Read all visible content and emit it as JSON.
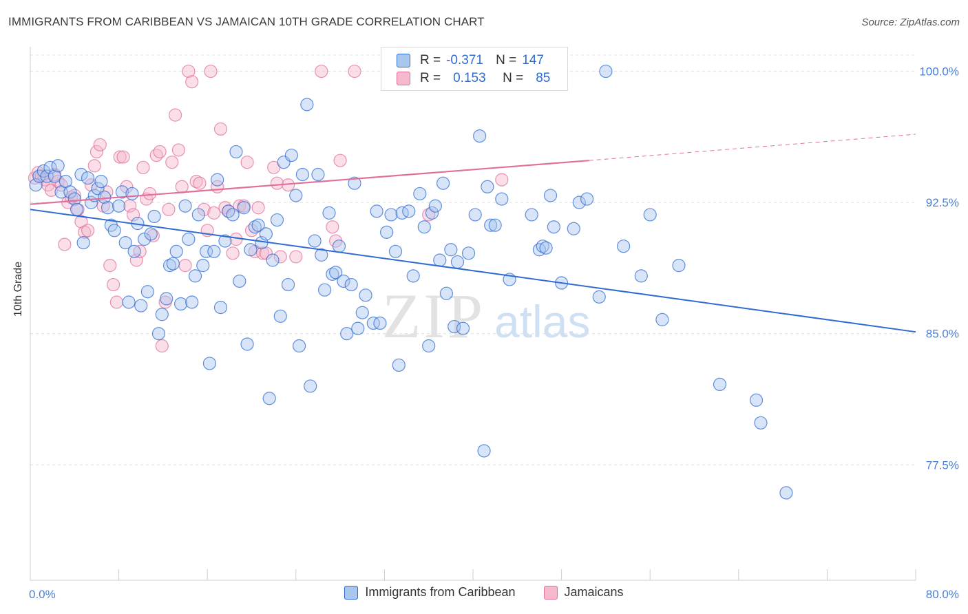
{
  "title": "IMMIGRANTS FROM CARIBBEAN VS JAMAICAN 10TH GRADE CORRELATION CHART",
  "source": "Source: ZipAtlas.com",
  "watermark": {
    "zip": "ZIP",
    "atlas": "atlas"
  },
  "colors": {
    "blue": "#2f6bd0",
    "blue_fill": "#a9c6ef",
    "pink": "#e06f9c",
    "pink_fill": "#f4b9cd",
    "axis_text": "#4a7fd4"
  },
  "stats": [
    {
      "label_r": "R =",
      "r": "-0.371",
      "label_n": "N =",
      "n": "147",
      "color": "blue"
    },
    {
      "label_r": "R =",
      "r": "0.153",
      "label_n": "N =",
      "n": "85",
      "color": "pink"
    }
  ],
  "legend": [
    {
      "name": "Immigrants from Caribbean",
      "color": "blue"
    },
    {
      "name": "Jamaicans",
      "color": "pink"
    }
  ],
  "chart_data": {
    "type": "scatter",
    "title": "IMMIGRANTS FROM CARIBBEAN VS JAMAICAN 10TH GRADE CORRELATION CHART",
    "xlabel": "",
    "ylabel": "10th Grade",
    "xlim": [
      0,
      80
    ],
    "ylim": [
      70.9,
      101.4
    ],
    "x_tick_labels": [
      "0.0%",
      "80.0%"
    ],
    "y_ticks": [
      77.5,
      85.0,
      92.5,
      100.0
    ],
    "y_tick_labels": [
      "77.5%",
      "85.0%",
      "92.5%",
      "100.0%"
    ],
    "grid": "horizontal dashed",
    "legend_position": "bottom",
    "series": [
      {
        "name": "Immigrants from Caribbean",
        "color": "blue",
        "trend": {
          "x": [
            0,
            80
          ],
          "y": [
            92.1,
            85.1
          ]
        },
        "points": [
          [
            0.5,
            93.5
          ],
          [
            0.8,
            94.0
          ],
          [
            1.2,
            94.3
          ],
          [
            1.5,
            94.0
          ],
          [
            1.8,
            94.5
          ],
          [
            2.2,
            94.0
          ],
          [
            2.5,
            94.6
          ],
          [
            2.8,
            93.1
          ],
          [
            3.2,
            93.7
          ],
          [
            3.6,
            93.1
          ],
          [
            4.0,
            92.7
          ],
          [
            4.2,
            92.1
          ],
          [
            4.6,
            94.1
          ],
          [
            4.8,
            90.2
          ],
          [
            5.2,
            93.9
          ],
          [
            5.5,
            92.5
          ],
          [
            5.8,
            92.9
          ],
          [
            6.1,
            93.3
          ],
          [
            6.4,
            93.7
          ],
          [
            6.7,
            92.8
          ],
          [
            7.0,
            92.2
          ],
          [
            7.3,
            91.2
          ],
          [
            7.6,
            90.9
          ],
          [
            8.0,
            92.3
          ],
          [
            8.3,
            93.1
          ],
          [
            8.6,
            90.2
          ],
          [
            8.9,
            86.8
          ],
          [
            9.2,
            93.0
          ],
          [
            9.4,
            89.7
          ],
          [
            9.7,
            91.3
          ],
          [
            10.0,
            86.6
          ],
          [
            10.3,
            90.4
          ],
          [
            10.6,
            87.4
          ],
          [
            10.9,
            90.7
          ],
          [
            11.2,
            91.7
          ],
          [
            11.6,
            85.0
          ],
          [
            11.9,
            86.1
          ],
          [
            12.3,
            87.0
          ],
          [
            12.6,
            88.9
          ],
          [
            12.9,
            89.0
          ],
          [
            13.2,
            89.7
          ],
          [
            13.6,
            86.7
          ],
          [
            14.0,
            92.3
          ],
          [
            14.3,
            90.4
          ],
          [
            14.6,
            86.8
          ],
          [
            14.9,
            88.3
          ],
          [
            15.2,
            91.8
          ],
          [
            15.6,
            88.9
          ],
          [
            15.9,
            89.7
          ],
          [
            16.2,
            83.3
          ],
          [
            16.6,
            89.7
          ],
          [
            16.9,
            93.8
          ],
          [
            17.2,
            86.5
          ],
          [
            17.6,
            90.3
          ],
          [
            17.9,
            92.0
          ],
          [
            18.3,
            91.8
          ],
          [
            18.6,
            95.4
          ],
          [
            18.9,
            88.0
          ],
          [
            19.3,
            92.2
          ],
          [
            19.6,
            84.4
          ],
          [
            19.9,
            89.8
          ],
          [
            20.3,
            91.1
          ],
          [
            20.6,
            91.2
          ],
          [
            20.9,
            90.2
          ],
          [
            21.3,
            90.7
          ],
          [
            21.6,
            81.3
          ],
          [
            21.9,
            89.2
          ],
          [
            22.3,
            91.5
          ],
          [
            22.6,
            86.0
          ],
          [
            22.9,
            94.8
          ],
          [
            23.3,
            87.8
          ],
          [
            23.6,
            95.2
          ],
          [
            24.0,
            92.9
          ],
          [
            24.3,
            84.3
          ],
          [
            24.6,
            94.1
          ],
          [
            25.0,
            98.1
          ],
          [
            25.3,
            82.0
          ],
          [
            25.7,
            90.3
          ],
          [
            26.0,
            94.1
          ],
          [
            26.3,
            89.5
          ],
          [
            26.6,
            87.5
          ],
          [
            27.0,
            91.9
          ],
          [
            27.3,
            88.4
          ],
          [
            27.6,
            88.5
          ],
          [
            27.9,
            90.0
          ],
          [
            28.3,
            88.0
          ],
          [
            28.6,
            85.0
          ],
          [
            29.0,
            87.8
          ],
          [
            29.3,
            93.6
          ],
          [
            29.6,
            85.3
          ],
          [
            30.0,
            86.2
          ],
          [
            30.3,
            87.2
          ],
          [
            31.0,
            85.6
          ],
          [
            31.3,
            92.0
          ],
          [
            31.6,
            85.6
          ],
          [
            32.2,
            90.8
          ],
          [
            32.6,
            91.8
          ],
          [
            33.0,
            89.7
          ],
          [
            33.3,
            83.2
          ],
          [
            33.6,
            91.9
          ],
          [
            34.2,
            92.0
          ],
          [
            34.6,
            88.3
          ],
          [
            35.2,
            93.0
          ],
          [
            35.6,
            91.1
          ],
          [
            36.0,
            84.3
          ],
          [
            36.3,
            91.9
          ],
          [
            36.6,
            92.3
          ],
          [
            37.0,
            89.2
          ],
          [
            37.3,
            93.6
          ],
          [
            37.6,
            87.3
          ],
          [
            38.0,
            89.8
          ],
          [
            38.3,
            85.4
          ],
          [
            38.6,
            89.1
          ],
          [
            39.1,
            85.3
          ],
          [
            39.6,
            89.6
          ],
          [
            40.2,
            91.8
          ],
          [
            40.6,
            96.3
          ],
          [
            41.0,
            78.3
          ],
          [
            41.3,
            93.4
          ],
          [
            41.6,
            91.2
          ],
          [
            42.0,
            91.2
          ],
          [
            42.6,
            92.7
          ],
          [
            43.3,
            88.1
          ],
          [
            45.3,
            91.8
          ],
          [
            46.0,
            89.8
          ],
          [
            46.3,
            90.0
          ],
          [
            46.6,
            89.9
          ],
          [
            47.0,
            92.9
          ],
          [
            47.3,
            91.1
          ],
          [
            48.0,
            87.9
          ],
          [
            49.1,
            91.0
          ],
          [
            49.6,
            92.5
          ],
          [
            50.3,
            92.7
          ],
          [
            51.4,
            87.1
          ],
          [
            52.0,
            100.0
          ],
          [
            53.6,
            90.0
          ],
          [
            55.2,
            88.3
          ],
          [
            56.0,
            91.8
          ],
          [
            57.1,
            85.8
          ],
          [
            58.6,
            88.9
          ],
          [
            62.3,
            82.1
          ],
          [
            65.6,
            81.2
          ],
          [
            66.0,
            79.9
          ],
          [
            68.3,
            75.9
          ]
        ]
      },
      {
        "name": "Jamaicans",
        "color": "pink",
        "trend": {
          "x": [
            0,
            50.5,
            80
          ],
          "y": [
            92.4,
            94.9,
            96.4
          ],
          "dashed_from_x": 50.5
        },
        "points": [
          [
            0.4,
            93.9
          ],
          [
            0.7,
            94.2
          ],
          [
            1.0,
            94.0
          ],
          [
            1.3,
            93.8
          ],
          [
            1.6,
            93.5
          ],
          [
            1.9,
            93.2
          ],
          [
            2.2,
            94.1
          ],
          [
            2.5,
            93.7
          ],
          [
            2.8,
            93.5
          ],
          [
            3.1,
            90.1
          ],
          [
            3.4,
            92.5
          ],
          [
            3.7,
            92.8
          ],
          [
            4.0,
            92.9
          ],
          [
            4.3,
            92.1
          ],
          [
            4.6,
            91.4
          ],
          [
            4.9,
            90.8
          ],
          [
            5.2,
            90.9
          ],
          [
            5.5,
            93.5
          ],
          [
            5.8,
            94.6
          ],
          [
            6.0,
            95.4
          ],
          [
            6.3,
            95.8
          ],
          [
            6.6,
            92.3
          ],
          [
            6.9,
            93.1
          ],
          [
            7.2,
            88.9
          ],
          [
            7.5,
            87.8
          ],
          [
            7.8,
            86.8
          ],
          [
            8.1,
            95.1
          ],
          [
            8.4,
            95.1
          ],
          [
            8.7,
            93.4
          ],
          [
            9.0,
            92.3
          ],
          [
            9.3,
            91.8
          ],
          [
            9.6,
            89.2
          ],
          [
            9.9,
            89.7
          ],
          [
            10.2,
            94.5
          ],
          [
            10.5,
            92.7
          ],
          [
            10.8,
            93.0
          ],
          [
            11.1,
            90.6
          ],
          [
            11.4,
            95.2
          ],
          [
            11.7,
            95.4
          ],
          [
            11.9,
            84.3
          ],
          [
            12.2,
            86.8
          ],
          [
            12.5,
            92.1
          ],
          [
            12.8,
            94.8
          ],
          [
            13.1,
            97.5
          ],
          [
            13.4,
            95.5
          ],
          [
            13.7,
            93.4
          ],
          [
            14.0,
            88.9
          ],
          [
            14.3,
            100.0
          ],
          [
            14.6,
            99.4
          ],
          [
            15.0,
            93.7
          ],
          [
            15.3,
            93.6
          ],
          [
            15.7,
            92.1
          ],
          [
            16.0,
            90.9
          ],
          [
            16.3,
            100.0
          ],
          [
            16.6,
            91.9
          ],
          [
            16.9,
            93.4
          ],
          [
            17.2,
            96.7
          ],
          [
            17.6,
            92.2
          ],
          [
            17.9,
            92.0
          ],
          [
            18.3,
            89.6
          ],
          [
            18.6,
            90.4
          ],
          [
            18.9,
            92.3
          ],
          [
            19.3,
            92.3
          ],
          [
            19.6,
            94.8
          ],
          [
            20.0,
            90.9
          ],
          [
            20.3,
            89.7
          ],
          [
            20.6,
            92.2
          ],
          [
            21.0,
            89.6
          ],
          [
            21.3,
            89.6
          ],
          [
            22.0,
            94.5
          ],
          [
            22.3,
            93.6
          ],
          [
            22.6,
            89.4
          ],
          [
            23.3,
            93.5
          ],
          [
            24.0,
            89.4
          ],
          [
            26.3,
            100.0
          ],
          [
            27.3,
            91.1
          ],
          [
            27.6,
            90.3
          ],
          [
            28.0,
            94.9
          ],
          [
            29.3,
            100.0
          ],
          [
            36.0,
            91.8
          ],
          [
            42.6,
            93.8
          ]
        ]
      }
    ]
  }
}
